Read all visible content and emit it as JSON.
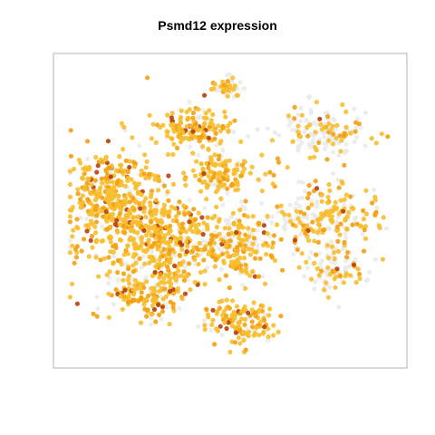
{
  "chart_data": {
    "type": "scatter",
    "title": "Psmd12 expression",
    "xlabel": "",
    "ylabel": "",
    "axes_shown": false,
    "grid": false,
    "legend": "none",
    "colors": {
      "low": "#e6e6e6",
      "mid": "#f5b31f",
      "high": "#b8400c",
      "frame": "#b3b3b3"
    },
    "color_scale": "expression: light grey (none) -> yellow/orange -> dark red-brown (high)",
    "clusters": [
      {
        "name": "top-center",
        "cx": 0.4,
        "cy": 0.78,
        "rx": 0.1,
        "ry": 0.07,
        "n": 160,
        "expr": 0.8
      },
      {
        "name": "top-right-islet",
        "cx": 0.49,
        "cy": 0.92,
        "rx": 0.04,
        "ry": 0.03,
        "n": 45,
        "expr": 0.55
      },
      {
        "name": "center-upper",
        "cx": 0.48,
        "cy": 0.62,
        "rx": 0.1,
        "ry": 0.06,
        "n": 120,
        "expr": 0.85
      },
      {
        "name": "upper-right",
        "cx": 0.78,
        "cy": 0.76,
        "rx": 0.12,
        "ry": 0.08,
        "n": 150,
        "expr": 0.35
      },
      {
        "name": "left-mass",
        "cx": 0.16,
        "cy": 0.52,
        "rx": 0.14,
        "ry": 0.2,
        "n": 460,
        "expr": 0.88
      },
      {
        "name": "left-center",
        "cx": 0.32,
        "cy": 0.4,
        "rx": 0.12,
        "ry": 0.14,
        "n": 300,
        "expr": 0.82
      },
      {
        "name": "center",
        "cx": 0.52,
        "cy": 0.38,
        "rx": 0.1,
        "ry": 0.12,
        "n": 220,
        "expr": 0.7
      },
      {
        "name": "right-mid",
        "cx": 0.78,
        "cy": 0.48,
        "rx": 0.14,
        "ry": 0.1,
        "n": 240,
        "expr": 0.55
      },
      {
        "name": "lower-right",
        "cx": 0.8,
        "cy": 0.3,
        "rx": 0.1,
        "ry": 0.07,
        "n": 100,
        "expr": 0.45
      },
      {
        "name": "bottom-center",
        "cx": 0.52,
        "cy": 0.12,
        "rx": 0.1,
        "ry": 0.07,
        "n": 140,
        "expr": 0.8
      },
      {
        "name": "lower-left",
        "cx": 0.25,
        "cy": 0.22,
        "rx": 0.12,
        "ry": 0.08,
        "n": 160,
        "expr": 0.75
      }
    ]
  }
}
